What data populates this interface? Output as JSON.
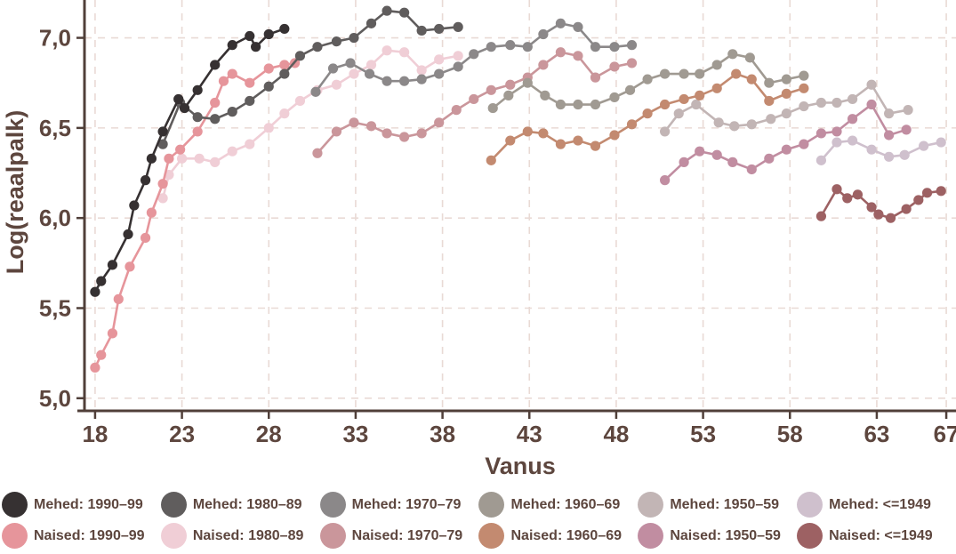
{
  "chart_data": {
    "type": "line",
    "title": "",
    "xlabel": "Vanus",
    "ylabel": "Log(reaalpalk)",
    "x_ticks": [
      18,
      23,
      28,
      33,
      38,
      43,
      48,
      53,
      58,
      63,
      67
    ],
    "x_tick_labels": [
      "18",
      "23",
      "28",
      "33",
      "38",
      "43",
      "48",
      "53",
      "58",
      "63",
      "67"
    ],
    "y_ticks": [
      5.0,
      5.5,
      6.0,
      6.5,
      7.0
    ],
    "y_tick_labels": [
      "5,0",
      "5,5",
      "6,0",
      "6,5",
      "7,0"
    ],
    "xlim": [
      17.39,
      67.56
    ],
    "ylim": [
      4.93,
      7.21
    ],
    "grid": true,
    "legend_position": "bottom",
    "style": {
      "axis_color": "#503f39",
      "text_color": "#5d463e",
      "grid_color": "#e9dad5",
      "background": "#ffffff",
      "marker_radius": 5.6,
      "line_width": 2.6
    },
    "series": [
      {
        "key": "mehed-1990-99",
        "name": "Mehed: 1990–99",
        "color": "#363132",
        "z": 12,
        "points": [
          [
            18,
            5.59
          ],
          [
            18.35,
            5.65
          ],
          [
            19,
            5.74
          ],
          [
            19.9,
            5.91
          ],
          [
            20.25,
            6.07
          ],
          [
            20.9,
            6.21
          ],
          [
            21.25,
            6.33
          ],
          [
            21.9,
            6.48
          ],
          [
            22.8,
            6.66
          ],
          [
            23.15,
            6.61
          ],
          [
            23.9,
            6.71
          ],
          [
            24.9,
            6.85
          ],
          [
            25.9,
            6.96
          ],
          [
            26.9,
            7.01
          ],
          [
            27.25,
            6.95
          ],
          [
            28,
            7.02
          ],
          [
            28.9,
            7.05
          ]
        ]
      },
      {
        "key": "mehed-1980-89",
        "name": "Mehed: 1980–89",
        "color": "#605d5d",
        "z": 11,
        "points": [
          [
            21.9,
            6.41
          ],
          [
            22.9,
            6.64
          ],
          [
            23.9,
            6.56
          ],
          [
            24.9,
            6.55
          ],
          [
            25.9,
            6.59
          ],
          [
            26.9,
            6.65
          ],
          [
            28,
            6.73
          ],
          [
            28.9,
            6.8
          ],
          [
            29.8,
            6.9
          ],
          [
            30.8,
            6.95
          ],
          [
            31.9,
            6.98
          ],
          [
            32.9,
            7.0
          ],
          [
            33.9,
            7.08
          ],
          [
            34.8,
            7.15
          ],
          [
            35.8,
            7.14
          ],
          [
            36.8,
            7.04
          ],
          [
            37.8,
            7.05
          ],
          [
            38.9,
            7.06
          ]
        ]
      },
      {
        "key": "mehed-1970-79",
        "name": "Mehed: 1970–79",
        "color": "#8b8889",
        "z": 8,
        "points": [
          [
            30.7,
            6.7
          ],
          [
            31.7,
            6.83
          ],
          [
            32.7,
            6.86
          ],
          [
            33.8,
            6.8
          ],
          [
            34.8,
            6.76
          ],
          [
            35.8,
            6.76
          ],
          [
            36.8,
            6.77
          ],
          [
            37.8,
            6.8
          ],
          [
            38.9,
            6.84
          ],
          [
            39.8,
            6.91
          ],
          [
            40.8,
            6.95
          ],
          [
            41.9,
            6.96
          ],
          [
            42.9,
            6.95
          ],
          [
            43.8,
            7.02
          ],
          [
            44.8,
            7.08
          ],
          [
            45.8,
            7.06
          ],
          [
            46.8,
            6.95
          ],
          [
            47.9,
            6.95
          ],
          [
            48.9,
            6.96
          ]
        ]
      },
      {
        "key": "mehed-1960-69",
        "name": "Mehed: 1960–69",
        "color": "#a09a92",
        "z": 7,
        "points": [
          [
            40.9,
            6.61
          ],
          [
            41.8,
            6.68
          ],
          [
            42.9,
            6.75
          ],
          [
            43.9,
            6.68
          ],
          [
            44.8,
            6.63
          ],
          [
            45.8,
            6.63
          ],
          [
            46.8,
            6.63
          ],
          [
            47.9,
            6.67
          ],
          [
            48.8,
            6.71
          ],
          [
            49.8,
            6.77
          ],
          [
            50.8,
            6.8
          ],
          [
            51.9,
            6.8
          ],
          [
            52.8,
            6.8
          ],
          [
            53.8,
            6.85
          ],
          [
            54.7,
            6.91
          ],
          [
            55.7,
            6.89
          ],
          [
            56.8,
            6.75
          ],
          [
            57.8,
            6.77
          ],
          [
            58.8,
            6.79
          ]
        ]
      },
      {
        "key": "mehed-1950-59",
        "name": "Mehed: 1950–59",
        "color": "#c2b5b5",
        "z": 3,
        "points": [
          [
            50.8,
            6.48
          ],
          [
            51.6,
            6.58
          ],
          [
            52.6,
            6.63
          ],
          [
            53.9,
            6.53
          ],
          [
            54.8,
            6.51
          ],
          [
            55.8,
            6.52
          ],
          [
            56.9,
            6.55
          ],
          [
            57.8,
            6.58
          ],
          [
            58.8,
            6.62
          ],
          [
            59.8,
            6.64
          ],
          [
            60.7,
            6.64
          ],
          [
            61.6,
            6.66
          ],
          [
            62.7,
            6.74
          ],
          [
            63.7,
            6.58
          ],
          [
            64.8,
            6.6
          ]
        ]
      },
      {
        "key": "mehed-le-1949",
        "name": "Mehed: <=1949",
        "color": "#cfc0cd",
        "z": 2,
        "points": [
          [
            59.8,
            6.32
          ],
          [
            60.7,
            6.42
          ],
          [
            61.6,
            6.43
          ],
          [
            62.7,
            6.38
          ],
          [
            63.7,
            6.34
          ],
          [
            64.6,
            6.35
          ],
          [
            65.7,
            6.4
          ],
          [
            66.7,
            6.42
          ]
        ]
      },
      {
        "key": "naised-1990-99",
        "name": "Naised: 1990–99",
        "color": "#e6959b",
        "z": 10,
        "points": [
          [
            18,
            5.17
          ],
          [
            18.35,
            5.24
          ],
          [
            19,
            5.36
          ],
          [
            19.35,
            5.55
          ],
          [
            20,
            5.73
          ],
          [
            20.9,
            5.89
          ],
          [
            21.25,
            6.03
          ],
          [
            21.9,
            6.19
          ],
          [
            22.25,
            6.33
          ],
          [
            22.9,
            6.38
          ],
          [
            23.9,
            6.48
          ],
          [
            24.9,
            6.64
          ],
          [
            25.4,
            6.76
          ],
          [
            25.9,
            6.8
          ],
          [
            26.9,
            6.75
          ],
          [
            28,
            6.83
          ],
          [
            28.9,
            6.85
          ],
          [
            29.5,
            6.86
          ]
        ]
      },
      {
        "key": "naised-1980-89",
        "name": "Naised: 1980–89",
        "color": "#f0ced6",
        "z": 1,
        "points": [
          [
            21.9,
            6.11
          ],
          [
            22.25,
            6.24
          ],
          [
            23,
            6.33
          ],
          [
            24,
            6.33
          ],
          [
            24.9,
            6.31
          ],
          [
            25.9,
            6.37
          ],
          [
            26.9,
            6.41
          ],
          [
            28,
            6.5
          ],
          [
            28.9,
            6.58
          ],
          [
            29.8,
            6.65
          ],
          [
            30.8,
            6.71
          ],
          [
            31.9,
            6.74
          ],
          [
            32.9,
            6.8
          ],
          [
            33.9,
            6.85
          ],
          [
            34.8,
            6.93
          ],
          [
            35.8,
            6.92
          ],
          [
            36.8,
            6.82
          ],
          [
            37.8,
            6.88
          ],
          [
            38.9,
            6.9
          ]
        ]
      },
      {
        "key": "naised-1970-79",
        "name": "Naised: 1970–79",
        "color": "#ca969b",
        "z": 5,
        "points": [
          [
            30.8,
            6.36
          ],
          [
            31.9,
            6.48
          ],
          [
            32.9,
            6.53
          ],
          [
            33.9,
            6.51
          ],
          [
            34.8,
            6.47
          ],
          [
            35.8,
            6.45
          ],
          [
            36.8,
            6.47
          ],
          [
            37.8,
            6.53
          ],
          [
            38.8,
            6.6
          ],
          [
            39.8,
            6.66
          ],
          [
            40.8,
            6.71
          ],
          [
            41.9,
            6.74
          ],
          [
            42.9,
            6.78
          ],
          [
            43.8,
            6.85
          ],
          [
            44.8,
            6.92
          ],
          [
            45.8,
            6.9
          ],
          [
            46.8,
            6.78
          ],
          [
            47.9,
            6.84
          ],
          [
            48.9,
            6.86
          ]
        ]
      },
      {
        "key": "naised-1960-69",
        "name": "Naised: 1960–69",
        "color": "#c38a70",
        "z": 6,
        "points": [
          [
            40.8,
            6.32
          ],
          [
            41.9,
            6.43
          ],
          [
            42.9,
            6.48
          ],
          [
            43.8,
            6.47
          ],
          [
            44.8,
            6.41
          ],
          [
            45.8,
            6.43
          ],
          [
            46.8,
            6.4
          ],
          [
            47.9,
            6.46
          ],
          [
            48.9,
            6.52
          ],
          [
            49.8,
            6.58
          ],
          [
            50.8,
            6.63
          ],
          [
            51.9,
            6.66
          ],
          [
            52.8,
            6.68
          ],
          [
            53.8,
            6.72
          ],
          [
            54.9,
            6.8
          ],
          [
            55.8,
            6.77
          ],
          [
            56.8,
            6.65
          ],
          [
            57.8,
            6.69
          ],
          [
            58.8,
            6.72
          ]
        ]
      },
      {
        "key": "naised-1950-59",
        "name": "Naised: 1950–59",
        "color": "#c18da1",
        "z": 4,
        "points": [
          [
            50.8,
            6.21
          ],
          [
            51.9,
            6.31
          ],
          [
            52.8,
            6.37
          ],
          [
            53.8,
            6.35
          ],
          [
            54.7,
            6.31
          ],
          [
            55.8,
            6.27
          ],
          [
            56.8,
            6.33
          ],
          [
            57.8,
            6.38
          ],
          [
            58.8,
            6.41
          ],
          [
            59.8,
            6.47
          ],
          [
            60.7,
            6.48
          ],
          [
            61.6,
            6.55
          ],
          [
            62.7,
            6.63
          ],
          [
            63.7,
            6.46
          ],
          [
            64.7,
            6.49
          ]
        ]
      },
      {
        "key": "naised-le-1949",
        "name": "Naised: <=1949",
        "color": "#9d6163",
        "z": 9,
        "points": [
          [
            59.8,
            6.01
          ],
          [
            60.7,
            6.16
          ],
          [
            61.3,
            6.11
          ],
          [
            61.9,
            6.13
          ],
          [
            62.7,
            6.06
          ],
          [
            63.1,
            6.02
          ],
          [
            63.8,
            6.0
          ],
          [
            64.7,
            6.05
          ],
          [
            65.4,
            6.1
          ],
          [
            65.9,
            6.14
          ],
          [
            66.7,
            6.15
          ]
        ]
      }
    ]
  }
}
